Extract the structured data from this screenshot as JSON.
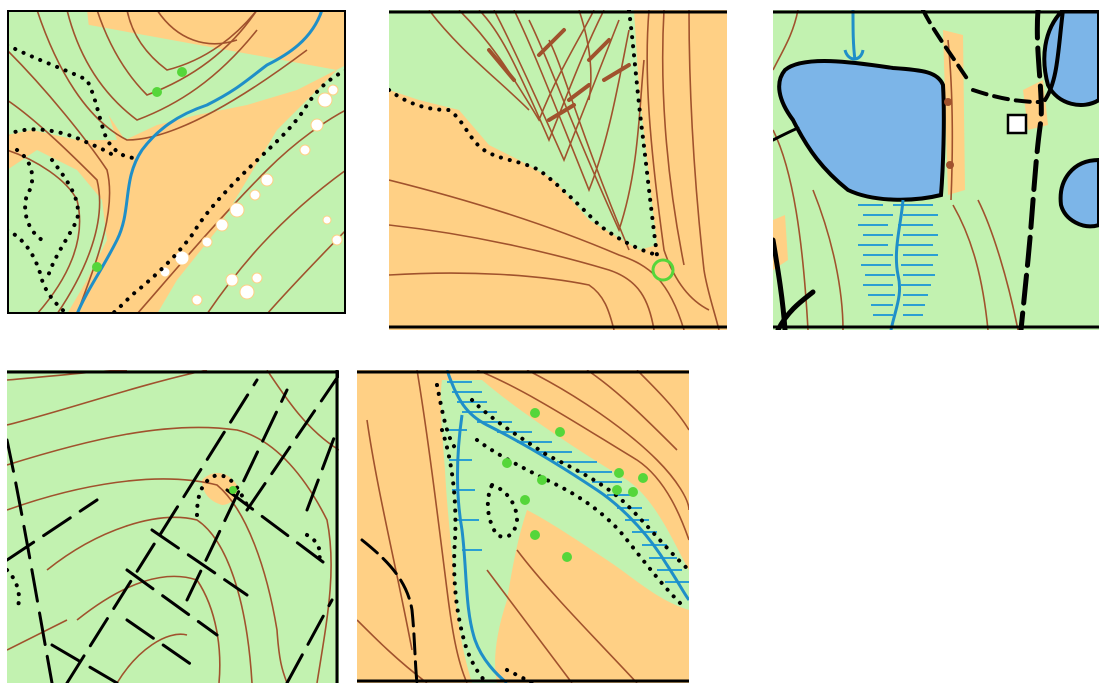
{
  "colors": {
    "open_land": "#FFD085",
    "forest": "#C2F2B0",
    "contour": "#A0522D",
    "water": "#7CB5E8",
    "stream": "#1F8FC8",
    "marsh": "#2B9FD3",
    "vegetation_boundary": "#000000",
    "path": "#000000",
    "green_feature": "#55D63A",
    "boulder_white": "#FFFFFF"
  },
  "tiles": [
    {
      "id": "tile-1",
      "features": [
        "contour-lines",
        "stream",
        "vegetation-boundary",
        "green-dots",
        "white-boulder-field"
      ]
    },
    {
      "id": "tile-2",
      "features": [
        "contour-lines",
        "vegetation-boundary",
        "green-circle"
      ]
    },
    {
      "id": "tile-3",
      "features": [
        "lake",
        "stream",
        "marsh",
        "paths",
        "small-building"
      ]
    },
    {
      "id": "tile-4",
      "features": [
        "contour-lines",
        "paths",
        "vegetation-boundary"
      ]
    },
    {
      "id": "tile-5",
      "features": [
        "contour-lines",
        "stream",
        "marsh",
        "vegetation-boundary",
        "green-dots",
        "path"
      ]
    }
  ]
}
